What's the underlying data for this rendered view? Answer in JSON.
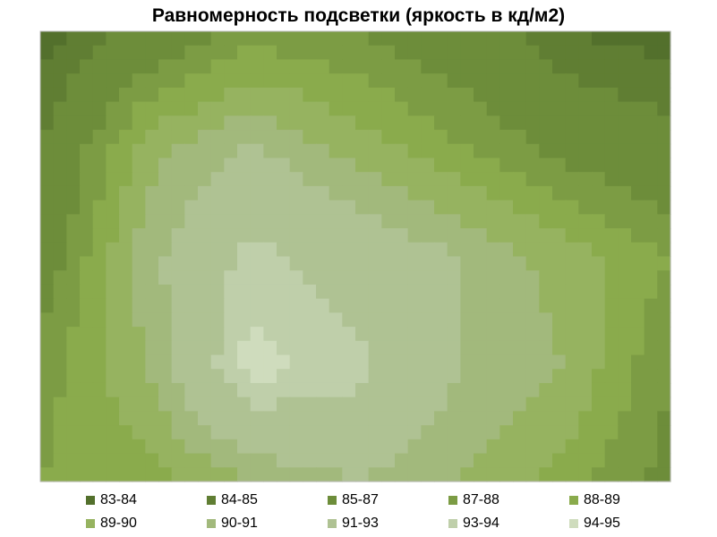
{
  "chart_data": {
    "type": "heatmap",
    "subtype": "filled-contour",
    "title": "Равномерность подсветки (яркость в кд/м2)",
    "xlabel": "",
    "ylabel": "",
    "grid": false,
    "legend_position": "bottom",
    "columns": 7,
    "rows": 5,
    "values": [
      [
        83.5,
        85.5,
        87.5,
        87.0,
        86.0,
        84.0,
        83.5
      ],
      [
        85.0,
        89.5,
        91.0,
        89.5,
        88.0,
        86.5,
        85.5
      ],
      [
        86.0,
        90.5,
        93.5,
        92.0,
        91.0,
        89.5,
        88.0
      ],
      [
        87.5,
        90.0,
        94.5,
        93.5,
        91.0,
        90.0,
        87.0
      ],
      [
        88.0,
        88.5,
        90.0,
        91.0,
        90.0,
        88.5,
        86.5
      ]
    ],
    "legend": [
      {
        "label": "83-84",
        "color": "#53702c",
        "min": 83,
        "max": 84
      },
      {
        "label": "84-85",
        "color": "#607e33",
        "min": 84,
        "max": 85
      },
      {
        "label": "85-87",
        "color": "#6d8d3a",
        "min": 85,
        "max": 87
      },
      {
        "label": "87-88",
        "color": "#7c9c44",
        "min": 87,
        "max": 88
      },
      {
        "label": "88-89",
        "color": "#8aab4c",
        "min": 88,
        "max": 89
      },
      {
        "label": "89-90",
        "color": "#96b360",
        "min": 89,
        "max": 90
      },
      {
        "label": "90-91",
        "color": "#a2b97c",
        "min": 90,
        "max": 91
      },
      {
        "label": "91-93",
        "color": "#afc293",
        "min": 91,
        "max": 93
      },
      {
        "label": "93-94",
        "color": "#bfcfaa",
        "min": 93,
        "max": 94
      },
      {
        "label": "94-95",
        "color": "#cfdcbd",
        "min": 94,
        "max": 95
      }
    ]
  }
}
